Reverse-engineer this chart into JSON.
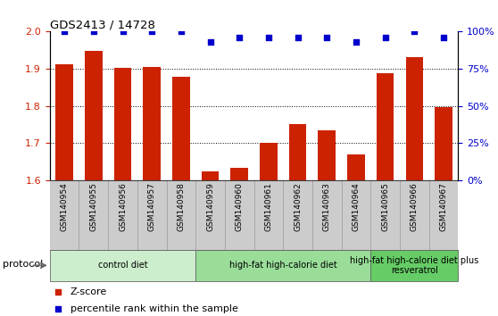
{
  "title": "GDS2413 / 14728",
  "samples": [
    "GSM140954",
    "GSM140955",
    "GSM140956",
    "GSM140957",
    "GSM140958",
    "GSM140959",
    "GSM140960",
    "GSM140961",
    "GSM140962",
    "GSM140963",
    "GSM140964",
    "GSM140965",
    "GSM140966",
    "GSM140967"
  ],
  "zscore": [
    1.912,
    1.948,
    1.902,
    1.905,
    1.878,
    1.623,
    1.633,
    1.7,
    1.752,
    1.735,
    1.67,
    1.888,
    1.932,
    1.796
  ],
  "percentile": [
    100,
    100,
    100,
    100,
    100,
    93,
    96,
    96,
    96,
    96,
    93,
    96,
    100,
    96
  ],
  "bar_color": "#cc2200",
  "dot_color": "#0000cc",
  "ylim_left": [
    1.6,
    2.0
  ],
  "ylim_right": [
    0,
    100
  ],
  "yticks_left": [
    1.6,
    1.7,
    1.8,
    1.9,
    2.0
  ],
  "yticks_right": [
    0,
    25,
    50,
    75,
    100
  ],
  "groups": [
    {
      "label": "control diet",
      "start": 0,
      "end": 5,
      "color": "#cceecc"
    },
    {
      "label": "high-fat high-calorie diet",
      "start": 5,
      "end": 11,
      "color": "#99dd99"
    },
    {
      "label": "high-fat high-calorie diet plus\nresveratrol",
      "start": 11,
      "end": 14,
      "color": "#66cc66"
    }
  ],
  "protocol_label": "protocol",
  "legend_zscore": "Z-score",
  "legend_percentile": "percentile rank within the sample",
  "tick_label_color_left": "#cc2200",
  "tick_label_color_right": "#0000cc",
  "xtick_bg_color": "#cccccc",
  "xtick_border_color": "#999999"
}
